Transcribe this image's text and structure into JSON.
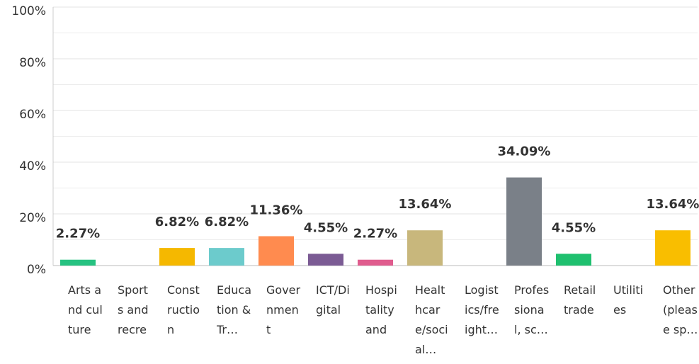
{
  "chart_data": {
    "type": "bar",
    "categories": [
      "Arts and culture",
      "Sports and recre",
      "Construction",
      "Education & Tr…",
      "Government",
      "ICT/Digital",
      "Hospitality and",
      "Healthcare/social…",
      "Logistics/freight…",
      "Professional, sc…",
      "Retail trade",
      "Utilities",
      "Other (please sp…"
    ],
    "values": [
      2.27,
      0,
      6.82,
      6.82,
      11.36,
      4.55,
      2.27,
      13.64,
      0,
      34.09,
      4.55,
      0,
      13.64
    ],
    "value_labels": [
      "2.27%",
      null,
      "6.82%",
      "6.82%",
      "11.36%",
      "4.55%",
      "2.27%",
      "13.64%",
      null,
      "34.09%",
      "4.55%",
      null,
      "13.64%"
    ],
    "colors": [
      "#26c281",
      "#26c281",
      "#f5b800",
      "#6ccbcc",
      "#ff8b4f",
      "#7b5b94",
      "#e05c8e",
      "#c8b77c",
      "#c8b77c",
      "#7a8088",
      "#1fc06f",
      "#1fc06f",
      "#f9be00"
    ],
    "ylim": [
      0,
      100
    ],
    "yticks": [
      {
        "value": 0,
        "label": "0%"
      },
      {
        "value": 20,
        "label": "20%"
      },
      {
        "value": 40,
        "label": "40%"
      },
      {
        "value": 60,
        "label": "60%"
      },
      {
        "value": 80,
        "label": "80%"
      },
      {
        "value": 100,
        "label": "100%"
      }
    ],
    "minor_yticks": [
      10,
      30,
      50,
      70,
      90
    ],
    "grid": true
  }
}
